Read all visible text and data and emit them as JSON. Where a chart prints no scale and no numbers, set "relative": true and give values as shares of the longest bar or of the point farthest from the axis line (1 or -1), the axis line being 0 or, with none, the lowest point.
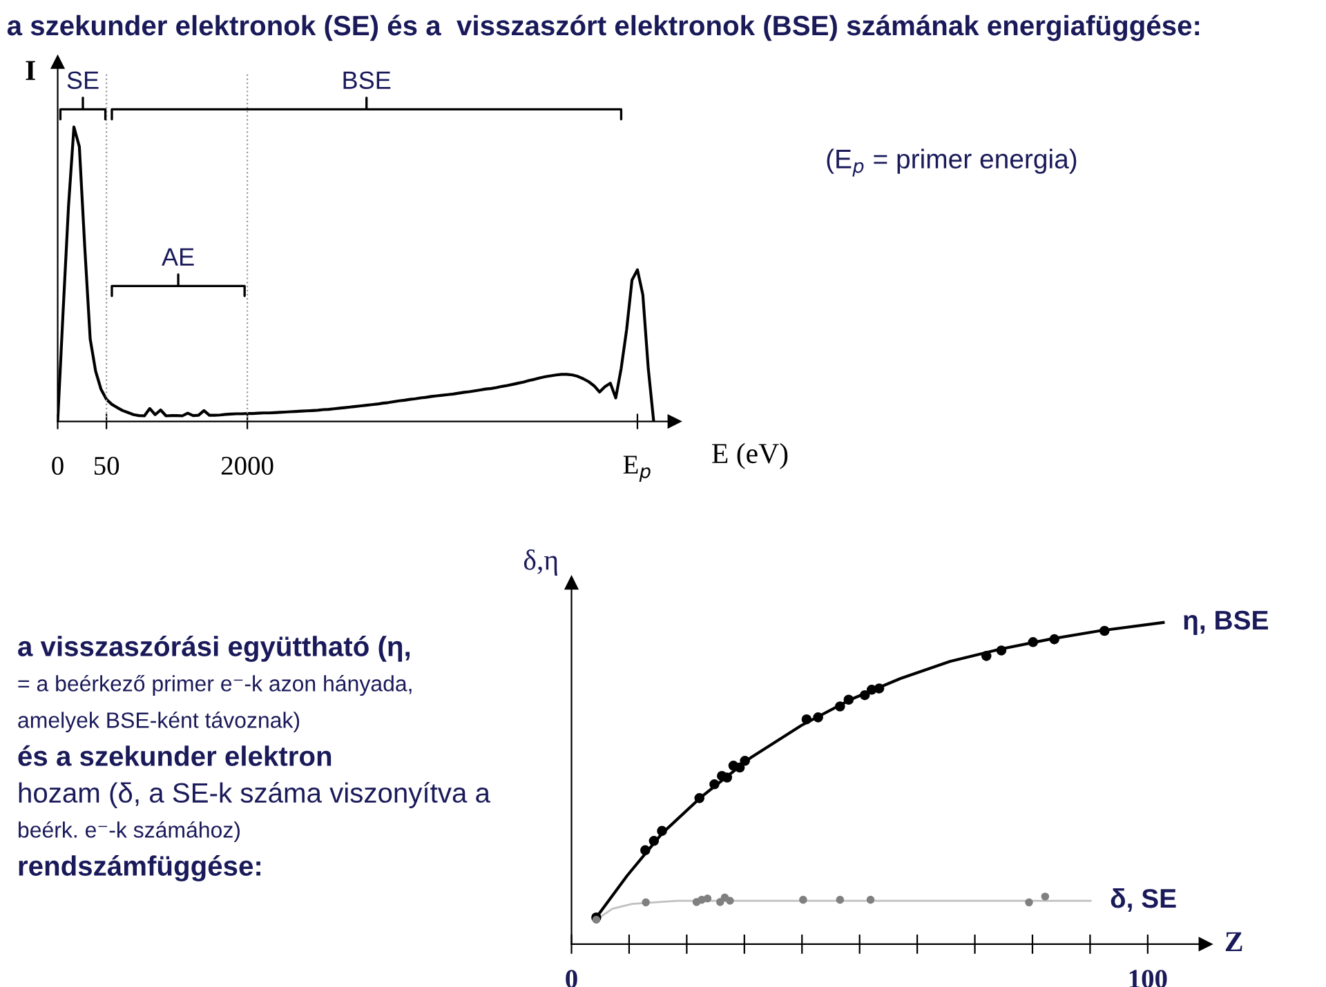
{
  "chart_data": [
    {
      "type": "line",
      "title": "a szekunder elektronok (SE) és a  visszaszórt elektronok (BSE) számának energiafüggése:",
      "ylabel": "I",
      "xlabel": "E (eV)",
      "relative": true,
      "marker": "none",
      "legend": false,
      "grid": false,
      "categories": [
        "0",
        null,
        null,
        null,
        null,
        null,
        null,
        null,
        null,
        "50",
        null,
        null,
        null,
        null,
        null,
        null,
        null,
        null,
        null,
        null,
        null,
        null,
        null,
        null,
        null,
        null,
        null,
        null,
        null,
        null,
        null,
        null,
        null,
        null,
        null,
        "2000",
        null,
        null,
        null,
        null,
        null,
        null,
        null,
        null,
        null,
        null,
        null,
        null,
        null,
        null,
        null,
        null,
        null,
        null,
        null,
        null,
        null,
        null,
        null,
        null,
        null,
        null,
        null,
        null,
        null,
        null,
        null,
        null,
        null,
        null,
        null,
        null,
        null,
        null,
        null,
        null,
        null,
        null,
        null,
        null,
        null,
        null,
        null,
        null,
        null,
        null,
        null,
        null,
        null,
        null,
        null,
        null,
        null,
        null,
        null,
        null,
        null,
        null,
        null,
        null,
        null,
        null,
        null,
        null,
        null,
        null,
        null,
        "E$_{p}$",
        null,
        null,
        null,
        null,
        null,
        null
      ],
      "series": [
        {
          "color": "#000000",
          "values": [
            0,
            0.373,
            0.731,
            1,
            0.933,
            0.591,
            0.28,
            0.171,
            0.109,
            0.075,
            0.058,
            0.047,
            0.037,
            0.03,
            0.023,
            0.02,
            0.019,
            0.044,
            0.023,
            0.039,
            0.019,
            0.02,
            0.02,
            0.019,
            0.028,
            0.02,
            0.021,
            0.037,
            0.021,
            0.021,
            0.022,
            0.024,
            0.025,
            0.026,
            0.026,
            0.027,
            0.027,
            0.028,
            0.029,
            0.029,
            0.03,
            0.031,
            0.032,
            0.033,
            0.034,
            0.035,
            0.036,
            0.037,
            0.038,
            0.04,
            0.041,
            0.043,
            0.045,
            0.047,
            0.049,
            0.051,
            0.053,
            0.055,
            0.057,
            0.059,
            0.062,
            0.064,
            0.067,
            0.07,
            0.072,
            0.075,
            0.077,
            0.08,
            0.082,
            0.085,
            0.087,
            0.089,
            0.091,
            0.093,
            0.096,
            0.099,
            0.101,
            0.104,
            0.107,
            0.11,
            0.112,
            0.115,
            0.119,
            0.122,
            0.126,
            0.13,
            0.134,
            0.139,
            0.143,
            0.148,
            0.152,
            0.155,
            0.158,
            0.16,
            0.16,
            0.158,
            0.153,
            0.145,
            0.135,
            0.121,
            0.1,
            0.118,
            0.13,
            0.08,
            0.18,
            0.311,
            0.48,
            0.515,
            0.43,
            0.18,
            0,
            null,
            null,
            null
          ]
        }
      ],
      "ref_lines": [
        {
          "axis": "x",
          "value": "50",
          "line_style": "dotted",
          "color": "#999999"
        },
        {
          "axis": "x",
          "value": "2000",
          "line_style": "dotted",
          "color": "#999999"
        }
      ],
      "annotations": [
        "SE",
        "BSE",
        "AE",
        "(E$_{p}$ = primer energia)"
      ]
    },
    {
      "type": "scatter",
      "ylabel": "δ,η",
      "xlabel": "Z",
      "relative": true,
      "marker": "circle",
      "legend": false,
      "grid": false,
      "xlim": [
        0,
        110
      ],
      "xticks": [
        0,
        {
          "value": 10,
          "label": null
        },
        {
          "value": 20,
          "label": null
        },
        {
          "value": 30,
          "label": null
        },
        {
          "value": 40,
          "label": null
        },
        {
          "value": 50,
          "label": null
        },
        {
          "value": 60,
          "label": null
        },
        {
          "value": 70,
          "label": null
        },
        {
          "value": 80,
          "label": null
        },
        {
          "value": 90,
          "label": null
        },
        100
      ],
      "series": [
        {
          "color": "#000000",
          "x": [
            4.3,
            12.8,
            14.3,
            15.7,
            22.2,
            24.8,
            26.1,
            27.0,
            28.1,
            29.2,
            30.1,
            40.8,
            42.8,
            46.6,
            48.1,
            50.9,
            52.1,
            53.4,
            72.0,
            74.6,
            80.1,
            83.8,
            92.5
          ],
          "values": [
            0.083,
            0.292,
            0.321,
            0.352,
            0.454,
            0.497,
            0.523,
            0.518,
            0.555,
            0.549,
            0.57,
            0.699,
            0.705,
            0.739,
            0.76,
            0.774,
            0.791,
            0.795,
            0.896,
            0.913,
            0.939,
            0.948,
            0.974
          ]
        },
        {
          "type": "line",
          "name": "η, BSE",
          "color": "#000000",
          "marker": "none",
          "x": [
            4.3,
            9.7,
            15.7,
            22.6,
            31.2,
            39.9,
            48.5,
            57.1,
            65.7,
            74.4,
            83.0,
            91.6,
            102.7
          ],
          "values": [
            0.083,
            0.214,
            0.344,
            0.459,
            0.581,
            0.68,
            0.761,
            0.826,
            0.879,
            0.917,
            0.948,
            0.974,
            1.0
          ]
        },
        {
          "color": "#808080",
          "x": [
            4.3,
            12.9,
            21.7,
            22.6,
            23.6,
            25.8,
            26.6,
            27.5,
            40.2,
            46.6,
            51.9,
            79.4,
            82.2
          ],
          "values": [
            0.076,
            0.13,
            0.131,
            0.138,
            0.142,
            0.131,
            0.145,
            0.135,
            0.138,
            0.138,
            0.138,
            0.13,
            0.148
          ]
        },
        {
          "type": "line",
          "name": "δ, SE",
          "color": "#c0c0c0",
          "marker": "none",
          "x": [
            4.3,
            7.1,
            10.5,
            18.3,
            90.1
          ],
          "values": [
            0.076,
            0.11,
            0.125,
            0.135,
            0.135
          ]
        }
      ],
      "annotations": [
        "a visszaszórási együttható (η,",
        "= a beérkező primer e⁻-k azon hányada,",
        "amelyek BSE-ként távoznak)",
        "és a szekunder elektron",
        "hozam (δ, a SE-k száma viszonyítva a",
        "beérk. e⁻-k számához)",
        "rendszámfüggése:"
      ]
    }
  ]
}
